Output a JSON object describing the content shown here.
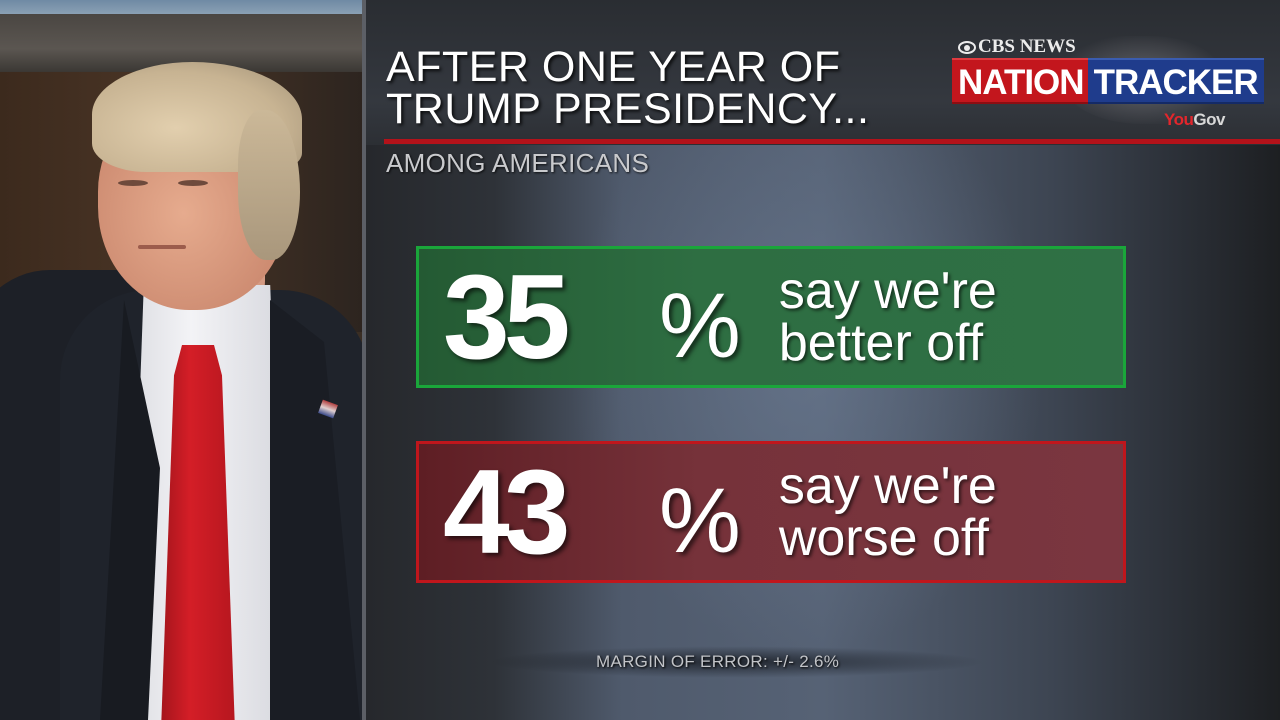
{
  "header": {
    "title_lines": [
      "AFTER ONE YEAR OF",
      "TRUMP PRESIDENCY..."
    ],
    "subtitle": "AMONG AMERICANS"
  },
  "logo": {
    "network": "CBS NEWS",
    "brand_part1": "NATION",
    "brand_part2": "TRACKER",
    "partner_part1": "You",
    "partner_part2": "Gov"
  },
  "stats": [
    {
      "value": "35",
      "sign": "%",
      "line1": "say we're",
      "line2": "better off",
      "color": "#2e6e42",
      "border": "#1aa63a"
    },
    {
      "value": "43",
      "sign": "%",
      "line1": "say we're",
      "line2": "worse off",
      "color": "#76323a",
      "border": "#c0161c"
    }
  ],
  "footer": {
    "margin_of_error": "MARGIN OF ERROR: +/- 2.6%"
  },
  "colors": {
    "accent_red": "#b3121a",
    "nation_red": "#c3161d",
    "tracker_blue": "#1f3c8c",
    "better_green": "#2e6e42",
    "worse_maroon": "#76323a"
  },
  "chart_data": {
    "type": "bar",
    "title": "After one year of Trump presidency...",
    "subtitle": "Among Americans",
    "categories": [
      "Better off",
      "Worse off"
    ],
    "values": [
      35,
      43
    ],
    "unit": "%",
    "labels": [
      "35% say we're better off",
      "43% say we're worse off"
    ],
    "annotations": [
      "Margin of error: +/- 2.6%"
    ],
    "source": "CBS News Nation Tracker / YouGov"
  }
}
